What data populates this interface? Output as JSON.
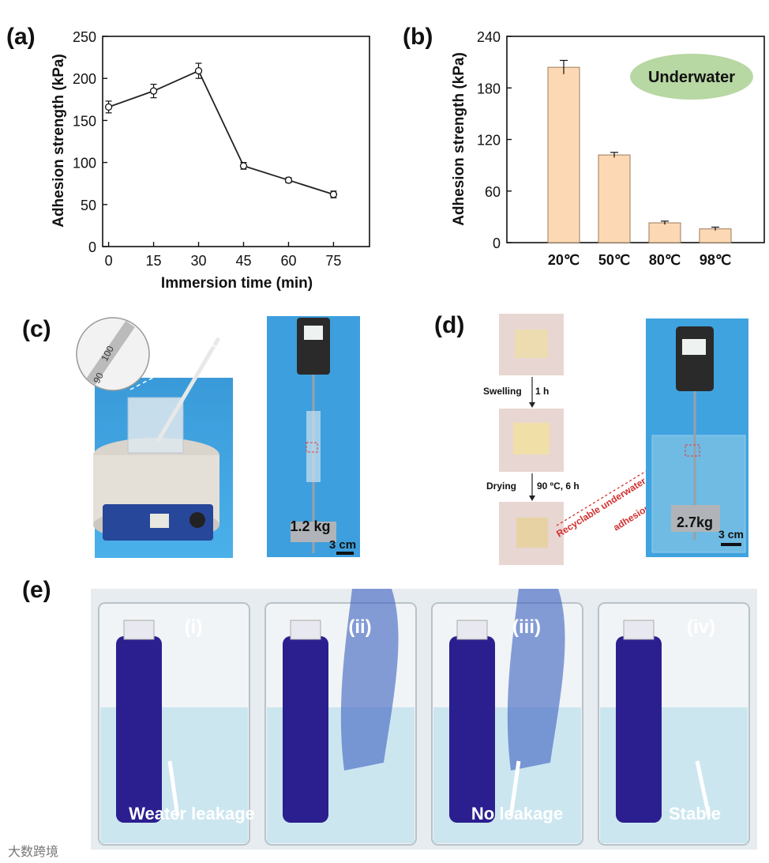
{
  "panels": {
    "a": "(a)",
    "b": "(b)",
    "c": "(c)",
    "d": "(d)",
    "e": "(e)"
  },
  "chart_data": [
    {
      "type": "line",
      "xlabel": "Immersion time (min)",
      "ylabel": "Adhesion strength (kPa)",
      "x": [
        0,
        15,
        30,
        45,
        60,
        75
      ],
      "y": [
        166,
        185,
        209,
        96,
        79,
        62
      ],
      "err": [
        7,
        8,
        9,
        4,
        3,
        4
      ],
      "xticks": [
        "0",
        "15",
        "30",
        "45",
        "60",
        "75"
      ],
      "yticks": [
        "0",
        "50",
        "100",
        "150",
        "200",
        "250"
      ],
      "xlim": [
        -2,
        87
      ],
      "ylim": [
        0,
        250
      ],
      "marker": "open-circle",
      "color": "#222222"
    },
    {
      "type": "bar",
      "xlabel": "",
      "ylabel": "Adhesion strength (kPa)",
      "categories": [
        "20℃",
        "50℃",
        "80℃",
        "98℃"
      ],
      "values": [
        204,
        102,
        23,
        16
      ],
      "err": [
        8,
        3,
        2,
        2
      ],
      "yticks": [
        "0",
        "60",
        "120",
        "180",
        "240"
      ],
      "ylim": [
        0,
        240
      ],
      "bar_color": "#fcd9b4",
      "annotation": "Underwater",
      "annotation_color": "#b7d7a3"
    }
  ],
  "photo_c": {
    "thermo_ticks": [
      "100",
      "90"
    ],
    "weight": "1.2 kg",
    "scale": "3 cm"
  },
  "photo_d": {
    "step1": "Swelling",
    "step1_time": "1 h",
    "step2": "Drying",
    "step2_cond": "90 ºC, 6 h",
    "arrow_label_1": "Recyclable underwater",
    "arrow_label_2": "adhesion",
    "weight": "2.7kg",
    "scale": "3 cm"
  },
  "photo_e": {
    "frames": [
      {
        "roman": "(i)",
        "caption": "Weater leakage"
      },
      {
        "roman": "(ii)",
        "caption": ""
      },
      {
        "roman": "(iii)",
        "caption": "No leakage"
      },
      {
        "roman": "(iv)",
        "caption": "Stable"
      }
    ],
    "watermark": "大数跨境"
  }
}
